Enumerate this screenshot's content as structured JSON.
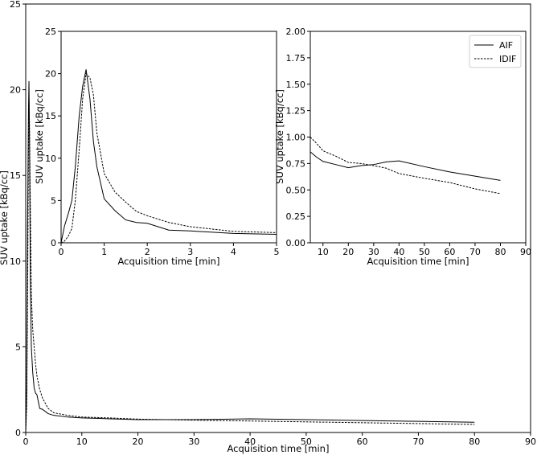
{
  "chart_data": [
    {
      "id": "main",
      "type": "line",
      "title": "",
      "xlabel": "Acquisition time [min]",
      "ylabel": "SUV uptake [kBq/cc]",
      "xlim": [
        0,
        90
      ],
      "ylim": [
        0,
        25
      ],
      "xticks": [
        0,
        10,
        20,
        30,
        40,
        50,
        60,
        70,
        80,
        90
      ],
      "yticks": [
        0,
        5,
        10,
        15,
        20,
        25
      ],
      "grid": false,
      "series": [
        {
          "name": "AIF",
          "style": "solid",
          "x": [
            0,
            0.17,
            0.33,
            0.5,
            0.58,
            0.67,
            0.83,
            1.0,
            1.25,
            1.5,
            1.75,
            2.0,
            2.5,
            3.0,
            4.0,
            5.0,
            7.5,
            10,
            15,
            20,
            30,
            40,
            50,
            60,
            70,
            80
          ],
          "y": [
            0,
            2.5,
            12,
            19,
            20.5,
            17,
            9,
            5,
            3.5,
            2.6,
            2.3,
            2.2,
            1.4,
            1.35,
            1.1,
            1.0,
            0.9,
            0.85,
            0.8,
            0.75,
            0.75,
            0.8,
            0.75,
            0.7,
            0.65,
            0.6
          ]
        },
        {
          "name": "IDIF",
          "style": "dashed",
          "x": [
            0,
            0.17,
            0.33,
            0.5,
            0.58,
            0.67,
            0.83,
            1.0,
            1.25,
            1.5,
            1.75,
            2.0,
            2.5,
            3.0,
            4.0,
            5.0,
            7.5,
            10,
            15,
            20,
            30,
            40,
            50,
            60,
            70,
            80
          ],
          "y": [
            0,
            1.5,
            8,
            17,
            19.5,
            18,
            13,
            8,
            6,
            5,
            4,
            3.3,
            2.5,
            2.0,
            1.4,
            1.15,
            1.0,
            0.9,
            0.85,
            0.78,
            0.72,
            0.67,
            0.62,
            0.57,
            0.52,
            0.47
          ]
        }
      ]
    },
    {
      "id": "inset-early",
      "type": "line",
      "title": "",
      "xlabel": "Acquisition time [min]",
      "ylabel": "SUV uptake [kBq/cc]",
      "xlim": [
        0,
        5
      ],
      "ylim": [
        0,
        25
      ],
      "xticks": [
        0,
        1,
        2,
        3,
        4,
        5
      ],
      "yticks": [
        0,
        5,
        10,
        15,
        20,
        25
      ],
      "grid": false,
      "series": [
        {
          "name": "AIF",
          "style": "solid",
          "x": [
            0,
            0.08,
            0.17,
            0.25,
            0.33,
            0.42,
            0.5,
            0.58,
            0.67,
            0.75,
            0.83,
            1.0,
            1.25,
            1.5,
            1.75,
            2.0,
            2.5,
            3.0,
            4.0,
            5.0
          ],
          "y": [
            0,
            2.0,
            3.5,
            5.0,
            9.0,
            15.0,
            18.5,
            20.5,
            17.0,
            12.0,
            9.0,
            5.2,
            3.8,
            2.7,
            2.4,
            2.3,
            1.5,
            1.4,
            1.1,
            1.0
          ]
        },
        {
          "name": "IDIF",
          "style": "dashed",
          "x": [
            0,
            0.08,
            0.17,
            0.25,
            0.33,
            0.42,
            0.5,
            0.58,
            0.67,
            0.75,
            0.83,
            1.0,
            1.25,
            1.5,
            1.75,
            2.0,
            2.5,
            3.0,
            4.0,
            5.0
          ],
          "y": [
            0,
            0.2,
            0.8,
            1.7,
            5.0,
            11.0,
            17.0,
            20.0,
            19.5,
            17.5,
            13.0,
            8.2,
            6.0,
            4.8,
            3.7,
            3.2,
            2.4,
            1.9,
            1.35,
            1.2
          ]
        }
      ]
    },
    {
      "id": "inset-late",
      "type": "line",
      "title": "",
      "xlabel": "Acquisition time [min]",
      "ylabel": "SUV uptake [kBq/cc]",
      "xlim": [
        5,
        90
      ],
      "ylim": [
        0,
        2
      ],
      "xticks": [
        10,
        20,
        30,
        40,
        50,
        60,
        70,
        80,
        90
      ],
      "yticks": [
        0.0,
        0.25,
        0.5,
        0.75,
        1.0,
        1.25,
        1.5,
        1.75,
        2.0
      ],
      "ytick_labels": [
        "0.00",
        "0.25",
        "0.50",
        "0.75",
        "1.00",
        "1.25",
        "1.50",
        "1.75",
        "2.00"
      ],
      "grid": false,
      "legend": "top-right",
      "series": [
        {
          "name": "AIF",
          "style": "solid",
          "x": [
            5,
            7.5,
            10,
            15,
            20,
            25,
            30,
            35,
            40,
            50,
            60,
            70,
            80
          ],
          "y": [
            0.86,
            0.81,
            0.77,
            0.74,
            0.71,
            0.73,
            0.74,
            0.765,
            0.775,
            0.72,
            0.67,
            0.63,
            0.59
          ]
        },
        {
          "name": "IDIF",
          "style": "dashed",
          "x": [
            5,
            7.5,
            10,
            15,
            20,
            25,
            30,
            35,
            40,
            50,
            60,
            70,
            80
          ],
          "y": [
            1.0,
            0.94,
            0.87,
            0.82,
            0.76,
            0.75,
            0.73,
            0.705,
            0.655,
            0.61,
            0.57,
            0.51,
            0.465
          ]
        }
      ]
    }
  ]
}
